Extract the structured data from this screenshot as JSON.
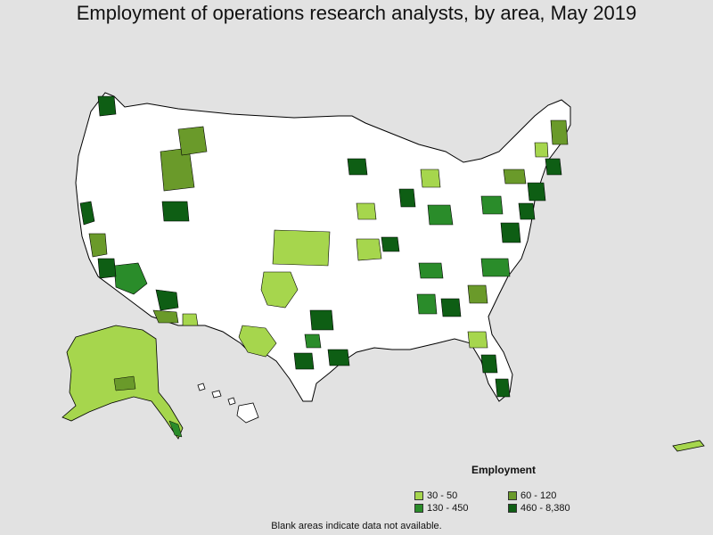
{
  "title": "Employment of operations research analysts, by area, May 2019",
  "legend": {
    "title": "Employment",
    "items": [
      {
        "label": "30 - 50",
        "color": "#a6d64d"
      },
      {
        "label": "60 - 120",
        "color": "#6a9a2a"
      },
      {
        "label": "130 - 450",
        "color": "#2a8c2a"
      },
      {
        "label": "460 - 8,380",
        "color": "#0e5e14"
      }
    ]
  },
  "note": "Blank areas indicate data not available.",
  "colors": {
    "background": "#e2e2e2",
    "land": "#ffffff",
    "border": "#000000"
  }
}
